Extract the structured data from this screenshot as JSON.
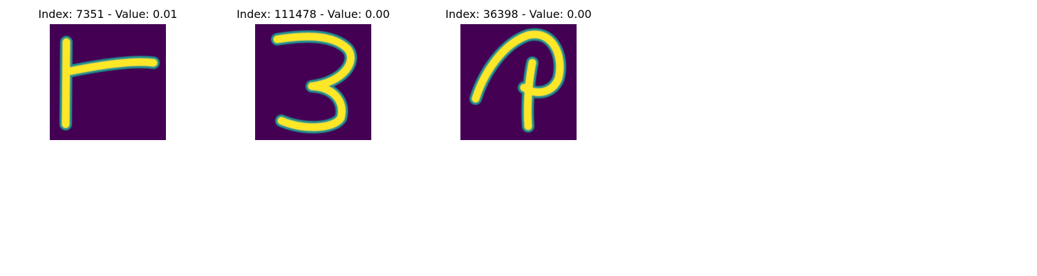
{
  "colors": {
    "background": "#440154",
    "stroke_mid": "#21918c",
    "stroke_high": "#fde725"
  },
  "panels": [
    {
      "title": "Index: 7351 - Value: 0.01"
    },
    {
      "title": "Index: 111478 - Value: 0.00"
    },
    {
      "title": "Index: 36398 - Value: 0.00"
    }
  ]
}
